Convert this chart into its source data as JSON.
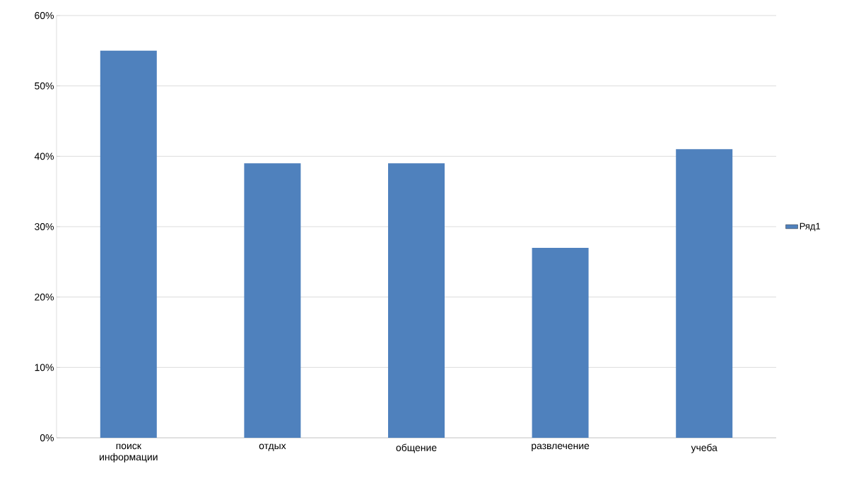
{
  "chart_data": {
    "type": "bar",
    "categories": [
      "поиск информации",
      "отдых",
      "общение",
      "развлечение",
      "учеба"
    ],
    "series": [
      {
        "name": "Ряд1",
        "color": "#4f81bd",
        "values": [
          55,
          39,
          39,
          27,
          41
        ]
      }
    ],
    "ylim": [
      0,
      60
    ],
    "yticks": [
      {
        "value": 0,
        "label": "0%"
      },
      {
        "value": 10,
        "label": "10%"
      },
      {
        "value": 20,
        "label": "20%"
      },
      {
        "value": 30,
        "label": "30%"
      },
      {
        "value": 40,
        "label": "40%"
      },
      {
        "value": 50,
        "label": "50%"
      },
      {
        "value": 60,
        "label": "60%"
      }
    ],
    "grid": "y",
    "legend": "right"
  }
}
